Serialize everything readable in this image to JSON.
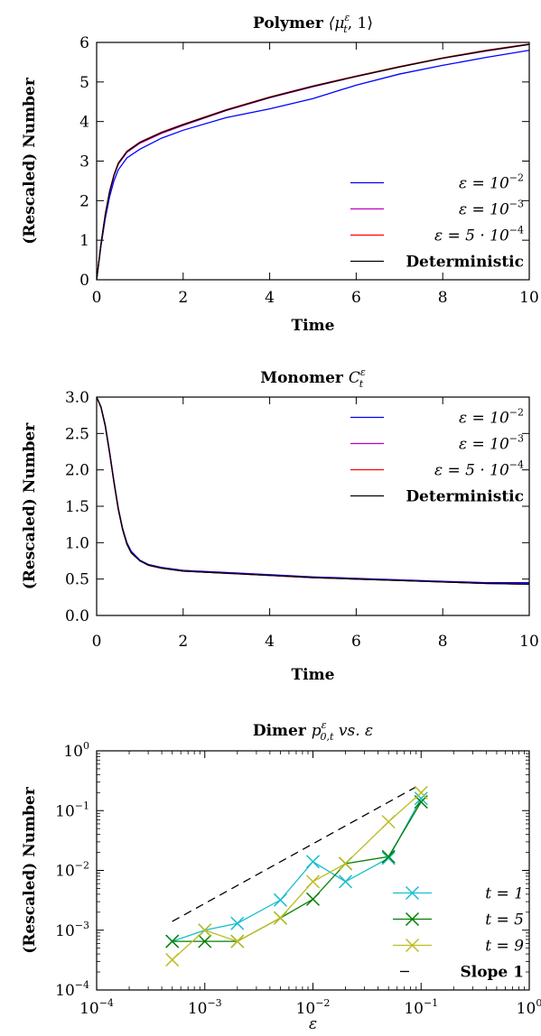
{
  "figure": "three stacked panels",
  "chart_data": [
    {
      "type": "line",
      "title": "Polymer ⟨μ_t^ε, 1⟩",
      "title_parts": [
        "Polymer ",
        "⟨μ",
        "ε",
        "t",
        ", 1⟩"
      ],
      "xlabel": "Time",
      "ylabel": "(Rescaled) Number",
      "xlim": [
        0,
        10
      ],
      "ylim": [
        0,
        6
      ],
      "xticks": [
        0,
        2,
        4,
        6,
        8,
        10
      ],
      "yticks": [
        0,
        1,
        2,
        3,
        4,
        5,
        6
      ],
      "grid": false,
      "legend_position": "lower-right",
      "series": [
        {
          "name": "ε = 10^-2",
          "legend": [
            "ε = 10",
            "−2"
          ],
          "color": "#0000ff",
          "x": [
            0,
            0.1,
            0.2,
            0.3,
            0.4,
            0.5,
            0.7,
            1.0,
            1.5,
            2,
            3,
            4,
            5,
            6,
            7,
            8,
            9,
            10
          ],
          "y": [
            0,
            0.85,
            1.55,
            2.1,
            2.5,
            2.78,
            3.08,
            3.3,
            3.58,
            3.78,
            4.1,
            4.32,
            4.58,
            4.92,
            5.2,
            5.42,
            5.62,
            5.8
          ]
        },
        {
          "name": "ε = 10^-3",
          "legend": [
            "ε = 10",
            "−3"
          ],
          "color": "#bf00bf",
          "x": [
            0,
            0.1,
            0.2,
            0.3,
            0.4,
            0.5,
            0.7,
            1.0,
            1.5,
            2,
            3,
            4,
            5,
            6,
            7,
            8,
            9,
            10
          ],
          "y": [
            0,
            0.9,
            1.65,
            2.22,
            2.63,
            2.92,
            3.22,
            3.45,
            3.7,
            3.9,
            4.28,
            4.6,
            4.88,
            5.14,
            5.38,
            5.6,
            5.78,
            5.95
          ]
        },
        {
          "name": "ε = 5·10^-4",
          "legend": [
            "ε = 5 · 10",
            "−4"
          ],
          "color": "#ff0000",
          "x": [
            0,
            0.1,
            0.2,
            0.3,
            0.4,
            0.5,
            0.7,
            1.0,
            1.5,
            2,
            3,
            4,
            5,
            6,
            7,
            8,
            9,
            10
          ],
          "y": [
            0,
            0.9,
            1.66,
            2.24,
            2.65,
            2.95,
            3.25,
            3.48,
            3.73,
            3.93,
            4.3,
            4.62,
            4.9,
            5.15,
            5.39,
            5.61,
            5.8,
            5.96
          ]
        },
        {
          "name": "Deterministic",
          "legend": [
            "Deterministic",
            ""
          ],
          "color": "#000000",
          "x": [
            0,
            0.1,
            0.2,
            0.3,
            0.4,
            0.5,
            0.7,
            1.0,
            1.5,
            2,
            3,
            4,
            5,
            6,
            7,
            8,
            9,
            10
          ],
          "y": [
            0,
            0.9,
            1.65,
            2.23,
            2.64,
            2.94,
            3.24,
            3.47,
            3.72,
            3.92,
            4.29,
            4.61,
            4.89,
            5.14,
            5.38,
            5.6,
            5.79,
            5.95
          ]
        }
      ]
    },
    {
      "type": "line",
      "title": "Monomer C_t^ε",
      "title_parts": [
        "Monomer ",
        "C",
        "ε",
        "t",
        ""
      ],
      "xlabel": "Time",
      "ylabel": "(Rescaled) Number",
      "xlim": [
        0,
        10
      ],
      "ylim": [
        0,
        3
      ],
      "xticks": [
        0,
        2,
        4,
        6,
        8,
        10
      ],
      "yticks": [
        0.0,
        0.5,
        1.0,
        1.5,
        2.0,
        2.5,
        3.0
      ],
      "ytick_labels": [
        "0.0",
        "0.5",
        "1.0",
        "1.5",
        "2.0",
        "2.5",
        "3.0"
      ],
      "grid": false,
      "legend_position": "top-right",
      "series": [
        {
          "name": "ε = 10^-2",
          "legend": [
            "ε = 10",
            "−2"
          ],
          "color": "#0000ff",
          "x": [
            0,
            0.1,
            0.2,
            0.3,
            0.4,
            0.5,
            0.6,
            0.7,
            0.8,
            1.0,
            1.2,
            1.5,
            2,
            3,
            4,
            5,
            6,
            7,
            8,
            9,
            10
          ],
          "y": [
            3.0,
            2.87,
            2.62,
            2.25,
            1.85,
            1.48,
            1.2,
            1.0,
            0.88,
            0.76,
            0.7,
            0.66,
            0.62,
            0.59,
            0.56,
            0.53,
            0.51,
            0.49,
            0.47,
            0.45,
            0.45
          ]
        },
        {
          "name": "ε = 10^-3",
          "legend": [
            "ε = 10",
            "−3"
          ],
          "color": "#bf00bf",
          "x": [
            0,
            0.1,
            0.2,
            0.3,
            0.4,
            0.5,
            0.6,
            0.7,
            0.8,
            1.0,
            1.2,
            1.5,
            2,
            3,
            4,
            5,
            6,
            7,
            8,
            9,
            10
          ],
          "y": [
            3.0,
            2.86,
            2.6,
            2.23,
            1.83,
            1.46,
            1.18,
            0.98,
            0.86,
            0.75,
            0.69,
            0.65,
            0.61,
            0.58,
            0.55,
            0.52,
            0.5,
            0.48,
            0.46,
            0.44,
            0.43
          ]
        },
        {
          "name": "ε = 5·10^-4",
          "legend": [
            "ε = 5 · 10",
            "−4"
          ],
          "color": "#ff0000",
          "x": [
            0,
            0.1,
            0.2,
            0.3,
            0.4,
            0.5,
            0.6,
            0.7,
            0.8,
            1.0,
            1.2,
            1.5,
            2,
            3,
            4,
            5,
            6,
            7,
            8,
            9,
            10
          ],
          "y": [
            3.0,
            2.86,
            2.6,
            2.23,
            1.83,
            1.46,
            1.18,
            0.98,
            0.86,
            0.75,
            0.69,
            0.65,
            0.61,
            0.58,
            0.55,
            0.52,
            0.5,
            0.48,
            0.46,
            0.44,
            0.43
          ]
        },
        {
          "name": "Deterministic",
          "legend": [
            "Deterministic",
            ""
          ],
          "color": "#000000",
          "x": [
            0,
            0.1,
            0.2,
            0.3,
            0.4,
            0.5,
            0.6,
            0.7,
            0.8,
            1.0,
            1.2,
            1.5,
            2,
            3,
            4,
            5,
            6,
            7,
            8,
            9,
            10
          ],
          "y": [
            3.0,
            2.86,
            2.6,
            2.23,
            1.83,
            1.46,
            1.18,
            0.98,
            0.86,
            0.75,
            0.69,
            0.65,
            0.61,
            0.58,
            0.55,
            0.52,
            0.5,
            0.48,
            0.46,
            0.44,
            0.43
          ]
        }
      ]
    },
    {
      "type": "line",
      "title": "Dimer p_{0,t}^ε vs. ε",
      "title_parts": [
        "Dimer ",
        "p",
        "ε",
        "0,t",
        " vs. ε"
      ],
      "xlabel": "ε",
      "ylabel": "(Rescaled) Number",
      "xscale": "log",
      "yscale": "log",
      "xlim": [
        0.0001,
        1
      ],
      "ylim": [
        0.0001,
        1
      ],
      "xticks": [
        0.0001,
        0.001,
        0.01,
        0.1,
        1
      ],
      "xtick_labels": [
        [
          "10",
          "−4"
        ],
        [
          "10",
          "−3"
        ],
        [
          "10",
          "−2"
        ],
        [
          "10",
          "−1"
        ],
        [
          "10",
          "0"
        ]
      ],
      "yticks": [
        0.0001,
        0.001,
        0.01,
        0.1,
        1
      ],
      "ytick_labels": [
        [
          "10",
          "−4"
        ],
        [
          "10",
          "−3"
        ],
        [
          "10",
          "−2"
        ],
        [
          "10",
          "−1"
        ],
        [
          "10",
          "0"
        ]
      ],
      "grid": false,
      "legend_position": "lower-right",
      "series": [
        {
          "name": "t = 1",
          "legend": [
            "t = 1",
            ""
          ],
          "color": "#17becf",
          "marker": "x",
          "x": [
            0.0005,
            0.001,
            0.002,
            0.005,
            0.01,
            0.02,
            0.05,
            0.1
          ],
          "y": [
            0.00065,
            0.001,
            0.0013,
            0.0032,
            0.014,
            0.0065,
            0.016,
            0.16
          ]
        },
        {
          "name": "t = 5",
          "legend": [
            "t = 5",
            ""
          ],
          "color": "#008000",
          "marker": "x",
          "x": [
            0.0005,
            0.001,
            0.002,
            0.005,
            0.01,
            0.02,
            0.05,
            0.1
          ],
          "y": [
            0.00065,
            0.00065,
            0.00065,
            0.0016,
            0.0033,
            0.013,
            0.017,
            0.14
          ]
        },
        {
          "name": "t = 9",
          "legend": [
            "t = 9",
            ""
          ],
          "color": "#bcbd22",
          "marker": "x",
          "x": [
            0.0005,
            0.001,
            0.002,
            0.005,
            0.01,
            0.02,
            0.05,
            0.1
          ],
          "y": [
            0.00032,
            0.001,
            0.00065,
            0.0016,
            0.0065,
            0.013,
            0.065,
            0.2
          ]
        },
        {
          "name": "Slope 1",
          "legend": [
            "Slope 1",
            ""
          ],
          "color": "#000000",
          "dashed": true,
          "x": [
            0.0005,
            0.09
          ],
          "y": [
            0.0014,
            0.25
          ]
        }
      ]
    }
  ]
}
